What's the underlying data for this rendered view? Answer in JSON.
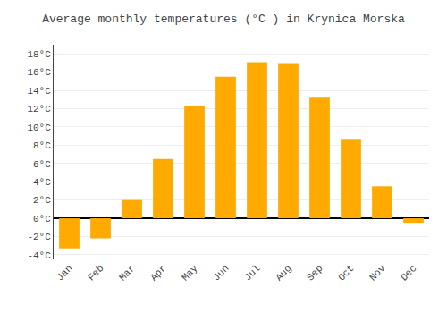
{
  "chart_data": {
    "type": "bar",
    "title": "Average monthly temperatures (°C ) in Krynica Morska",
    "categories": [
      "Jan",
      "Feb",
      "Mar",
      "Apr",
      "May",
      "Jun",
      "Jul",
      "Aug",
      "Sep",
      "Oct",
      "Nov",
      "Dec"
    ],
    "values": [
      -3.3,
      -2.2,
      2.0,
      6.5,
      12.3,
      15.5,
      17.1,
      16.9,
      13.2,
      8.7,
      3.5,
      -0.5
    ],
    "color": "#FFAA00",
    "ylim": [
      -4.5,
      19.0
    ],
    "yticks": [
      {
        "value": -4,
        "label": "-4°C"
      },
      {
        "value": -2,
        "label": "-2°C"
      },
      {
        "value": 0,
        "label": "0°C"
      },
      {
        "value": 2,
        "label": "2°C"
      },
      {
        "value": 4,
        "label": "4°C"
      },
      {
        "value": 6,
        "label": "6°C"
      },
      {
        "value": 8,
        "label": "8°C"
      },
      {
        "value": 10,
        "label": "10°C"
      },
      {
        "value": 12,
        "label": "12°C"
      },
      {
        "value": 14,
        "label": "14°C"
      },
      {
        "value": 16,
        "label": "16°C"
      },
      {
        "value": 18,
        "label": "18°C"
      }
    ],
    "grid": true
  }
}
